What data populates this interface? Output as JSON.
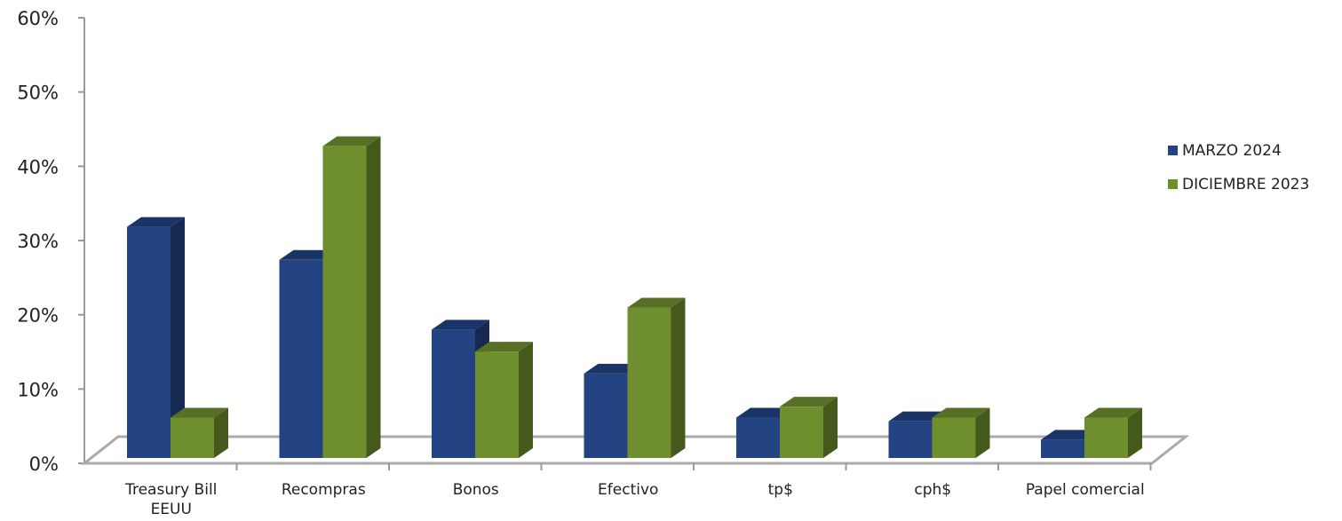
{
  "chart_data": {
    "type": "bar",
    "categories": [
      [
        "Treasury Bill",
        "EEUU"
      ],
      [
        "Recompras"
      ],
      [
        "Bonos"
      ],
      [
        "Efectivo"
      ],
      [
        "tp$"
      ],
      [
        "cph$"
      ],
      [
        "Papel comercial"
      ]
    ],
    "series": [
      {
        "name": "MARZO 2024",
        "color": "#234383",
        "values": [
          31.5,
          27.0,
          17.5,
          11.5,
          5.5,
          5.0,
          2.5
        ]
      },
      {
        "name": "DICIEMBRE 2023",
        "color": "#6f8f2f",
        "values": [
          5.5,
          42.5,
          14.5,
          20.5,
          7.0,
          5.5,
          5.5
        ]
      }
    ],
    "ylim": [
      0,
      60
    ],
    "yticks": [
      "0%",
      "10%",
      "20%",
      "30%",
      "40%",
      "50%",
      "60%"
    ],
    "grid": false,
    "legend_position": "right"
  }
}
